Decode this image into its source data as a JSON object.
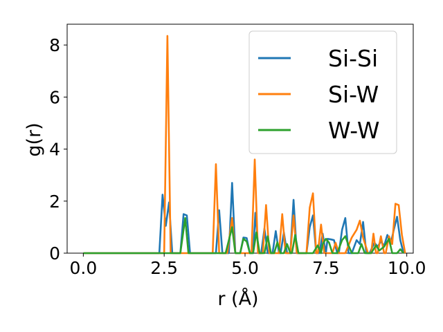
{
  "chart_data": {
    "type": "line",
    "title": "",
    "xlabel": "r (Å)",
    "ylabel": "g(r)",
    "xlim": [
      -0.5,
      10.2
    ],
    "ylim": [
      0,
      8.8
    ],
    "xticks": [
      0.0,
      2.5,
      5.0,
      7.5,
      10.0
    ],
    "xtick_labels": [
      "0.0",
      "2.5",
      "5.0",
      "7.5",
      "10.0"
    ],
    "yticks": [
      0,
      2,
      4,
      6,
      8
    ],
    "ytick_labels": [
      "0",
      "2",
      "4",
      "6",
      "8"
    ],
    "grid": false,
    "legend_position": "top-right",
    "series": [
      {
        "name": "Si-Si",
        "color": "#1f77b4",
        "points": [
          [
            0,
            0
          ],
          [
            2.35,
            0
          ],
          [
            2.45,
            2.25
          ],
          [
            2.55,
            1.05
          ],
          [
            2.65,
            1.95
          ],
          [
            2.75,
            0
          ],
          [
            3.0,
            0
          ],
          [
            3.1,
            1.5
          ],
          [
            3.2,
            1.45
          ],
          [
            3.3,
            0
          ],
          [
            4.1,
            0
          ],
          [
            4.2,
            1.65
          ],
          [
            4.3,
            0
          ],
          [
            4.5,
            0
          ],
          [
            4.6,
            2.7
          ],
          [
            4.7,
            0
          ],
          [
            4.85,
            0
          ],
          [
            4.95,
            0.6
          ],
          [
            5.05,
            0.58
          ],
          [
            5.15,
            0
          ],
          [
            5.25,
            0
          ],
          [
            5.32,
            1.55
          ],
          [
            5.42,
            0
          ],
          [
            5.5,
            0
          ],
          [
            5.6,
            0.95
          ],
          [
            5.7,
            0
          ],
          [
            5.85,
            0
          ],
          [
            5.95,
            0.85
          ],
          [
            6.05,
            0
          ],
          [
            6.1,
            0
          ],
          [
            6.2,
            0.8
          ],
          [
            6.3,
            0
          ],
          [
            6.4,
            0
          ],
          [
            6.5,
            2.05
          ],
          [
            6.6,
            0
          ],
          [
            6.9,
            0
          ],
          [
            7.0,
            1.0
          ],
          [
            7.1,
            1.45
          ],
          [
            7.2,
            0
          ],
          [
            7.3,
            0
          ],
          [
            7.4,
            0.75
          ],
          [
            7.5,
            0
          ],
          [
            7.55,
            0.55
          ],
          [
            7.65,
            0.53
          ],
          [
            7.75,
            0.5
          ],
          [
            7.85,
            0
          ],
          [
            7.9,
            0
          ],
          [
            8.0,
            0.9
          ],
          [
            8.1,
            1.35
          ],
          [
            8.2,
            0
          ],
          [
            8.3,
            0
          ],
          [
            8.45,
            0.5
          ],
          [
            8.55,
            0.35
          ],
          [
            8.65,
            1.2
          ],
          [
            8.75,
            0
          ],
          [
            8.85,
            0
          ],
          [
            9.0,
            0.4
          ],
          [
            9.1,
            0.25
          ],
          [
            9.2,
            0.45
          ],
          [
            9.3,
            0.28
          ],
          [
            9.4,
            0.7
          ],
          [
            9.5,
            0.35
          ],
          [
            9.6,
            0.9
          ],
          [
            9.7,
            1.4
          ],
          [
            9.8,
            0.5
          ],
          [
            9.9,
            0
          ]
        ]
      },
      {
        "name": "Si-W",
        "color": "#ff7f0e",
        "points": [
          [
            0,
            0
          ],
          [
            2.5,
            0
          ],
          [
            2.6,
            8.35
          ],
          [
            2.7,
            0
          ],
          [
            4.0,
            0
          ],
          [
            4.1,
            3.42
          ],
          [
            4.2,
            0
          ],
          [
            4.45,
            0
          ],
          [
            4.6,
            1.35
          ],
          [
            4.7,
            0
          ],
          [
            5.2,
            0
          ],
          [
            5.3,
            3.6
          ],
          [
            5.4,
            0
          ],
          [
            5.55,
            0
          ],
          [
            5.65,
            1.85
          ],
          [
            5.75,
            0
          ],
          [
            6.05,
            0
          ],
          [
            6.15,
            1.5
          ],
          [
            6.25,
            0
          ],
          [
            6.4,
            0
          ],
          [
            6.5,
            1.45
          ],
          [
            6.6,
            0
          ],
          [
            6.9,
            0
          ],
          [
            7.0,
            1.75
          ],
          [
            7.1,
            2.3
          ],
          [
            7.2,
            0
          ],
          [
            7.25,
            0
          ],
          [
            7.35,
            1.1
          ],
          [
            7.45,
            0
          ],
          [
            7.7,
            0
          ],
          [
            7.8,
            0.4
          ],
          [
            7.9,
            0
          ],
          [
            8.1,
            0
          ],
          [
            8.3,
            0.6
          ],
          [
            8.45,
            0.9
          ],
          [
            8.55,
            1.25
          ],
          [
            8.65,
            0.6
          ],
          [
            8.8,
            0
          ],
          [
            8.9,
            0
          ],
          [
            8.97,
            0.75
          ],
          [
            9.05,
            0
          ],
          [
            9.1,
            0
          ],
          [
            9.2,
            0.65
          ],
          [
            9.3,
            0
          ],
          [
            9.35,
            0
          ],
          [
            9.45,
            0.65
          ],
          [
            9.55,
            0.35
          ],
          [
            9.65,
            1.9
          ],
          [
            9.75,
            1.85
          ],
          [
            9.85,
            0.7
          ],
          [
            9.95,
            0
          ]
        ]
      },
      {
        "name": "W-W",
        "color": "#2ca02c",
        "points": [
          [
            0,
            0
          ],
          [
            3.0,
            0
          ],
          [
            3.15,
            1.35
          ],
          [
            3.25,
            0
          ],
          [
            4.4,
            0
          ],
          [
            4.6,
            1.0
          ],
          [
            4.7,
            0
          ],
          [
            4.85,
            0
          ],
          [
            4.95,
            0.55
          ],
          [
            5.05,
            0.45
          ],
          [
            5.15,
            0
          ],
          [
            5.25,
            0
          ],
          [
            5.35,
            0.8
          ],
          [
            5.45,
            0
          ],
          [
            5.6,
            0
          ],
          [
            5.7,
            0.65
          ],
          [
            5.8,
            0
          ],
          [
            5.9,
            0
          ],
          [
            6.0,
            0.42
          ],
          [
            6.1,
            0
          ],
          [
            6.2,
            0
          ],
          [
            6.3,
            0.35
          ],
          [
            6.4,
            0
          ],
          [
            6.45,
            0
          ],
          [
            6.55,
            0.7
          ],
          [
            6.65,
            0
          ],
          [
            7.1,
            0
          ],
          [
            7.25,
            0.3
          ],
          [
            7.35,
            0
          ],
          [
            7.4,
            0.35
          ],
          [
            7.5,
            0.55
          ],
          [
            7.6,
            0.4
          ],
          [
            7.7,
            0
          ],
          [
            7.85,
            0
          ],
          [
            8.0,
            0.5
          ],
          [
            8.1,
            0.65
          ],
          [
            8.2,
            0.3
          ],
          [
            8.3,
            0
          ],
          [
            8.5,
            0
          ],
          [
            8.6,
            0.35
          ],
          [
            8.7,
            0
          ],
          [
            8.9,
            0
          ],
          [
            9.05,
            0.3
          ],
          [
            9.15,
            0.1
          ],
          [
            9.3,
            0.25
          ],
          [
            9.45,
            0.55
          ],
          [
            9.55,
            0
          ],
          [
            9.7,
            0
          ],
          [
            9.8,
            0.15
          ],
          [
            9.9,
            0
          ]
        ]
      }
    ]
  }
}
